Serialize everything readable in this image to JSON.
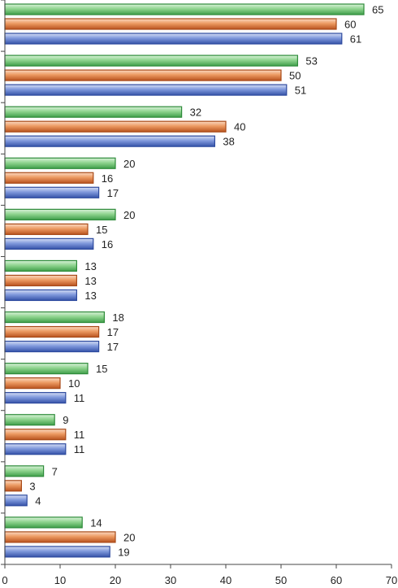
{
  "chart_data": {
    "type": "bar",
    "orientation": "horizontal",
    "categories": [
      "",
      "",
      "",
      "",
      "",
      "",
      "",
      "",
      "",
      "",
      ""
    ],
    "series": [
      {
        "color": "#5dbb63",
        "values": [
          65,
          53,
          32,
          20,
          20,
          13,
          18,
          15,
          9,
          7,
          14
        ]
      },
      {
        "color": "#e0783c",
        "values": [
          60,
          50,
          40,
          16,
          15,
          13,
          17,
          10,
          11,
          3,
          20
        ]
      },
      {
        "color": "#5a78c8",
        "values": [
          61,
          51,
          38,
          17,
          16,
          13,
          17,
          11,
          11,
          4,
          19
        ]
      }
    ],
    "xlim": [
      0,
      70
    ],
    "xticks": [
      0,
      10,
      20,
      30,
      40,
      50,
      60,
      70
    ],
    "title": "",
    "xlabel": "",
    "ylabel": "",
    "data_labels": true,
    "grid": false,
    "legend": "none"
  }
}
